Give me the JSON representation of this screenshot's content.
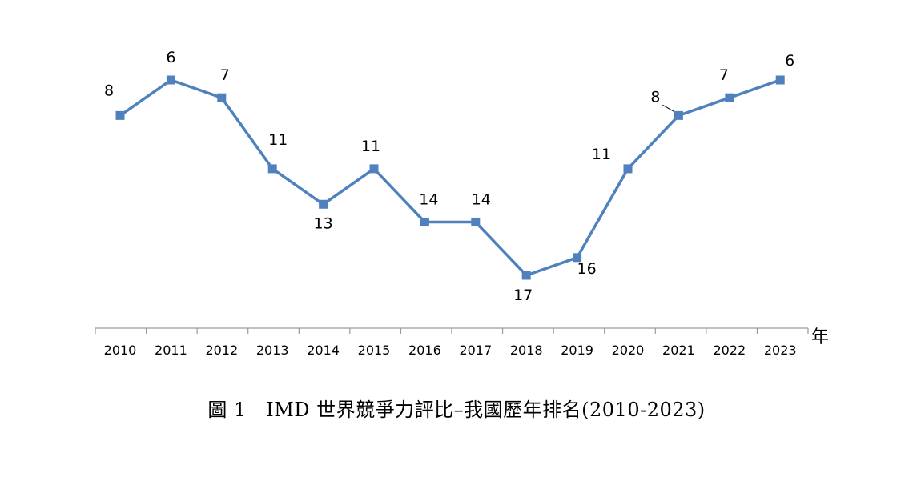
{
  "chart_data": {
    "type": "line",
    "x": [
      "2010",
      "2011",
      "2012",
      "2013",
      "2014",
      "2015",
      "2016",
      "2017",
      "2018",
      "2019",
      "2020",
      "2021",
      "2022",
      "2023"
    ],
    "series": [
      {
        "values": [
          8,
          6,
          7,
          11,
          13,
          11,
          14,
          14,
          17,
          16,
          11,
          8,
          7,
          6
        ],
        "color": "#4F81BD"
      }
    ],
    "data_labels": [
      "8",
      "6",
      "7",
      "11",
      "13",
      "11",
      "14",
      "14",
      "17",
      "16",
      "11",
      "8",
      "7",
      "6"
    ],
    "xlabel": "年",
    "ylabel": "",
    "y_inverted": true,
    "ylim": [
      6,
      17
    ],
    "grid": false,
    "markers": "square"
  },
  "caption": "圖 1　IMD 世界競爭力評比–我國歷年排名(2010-2023)"
}
